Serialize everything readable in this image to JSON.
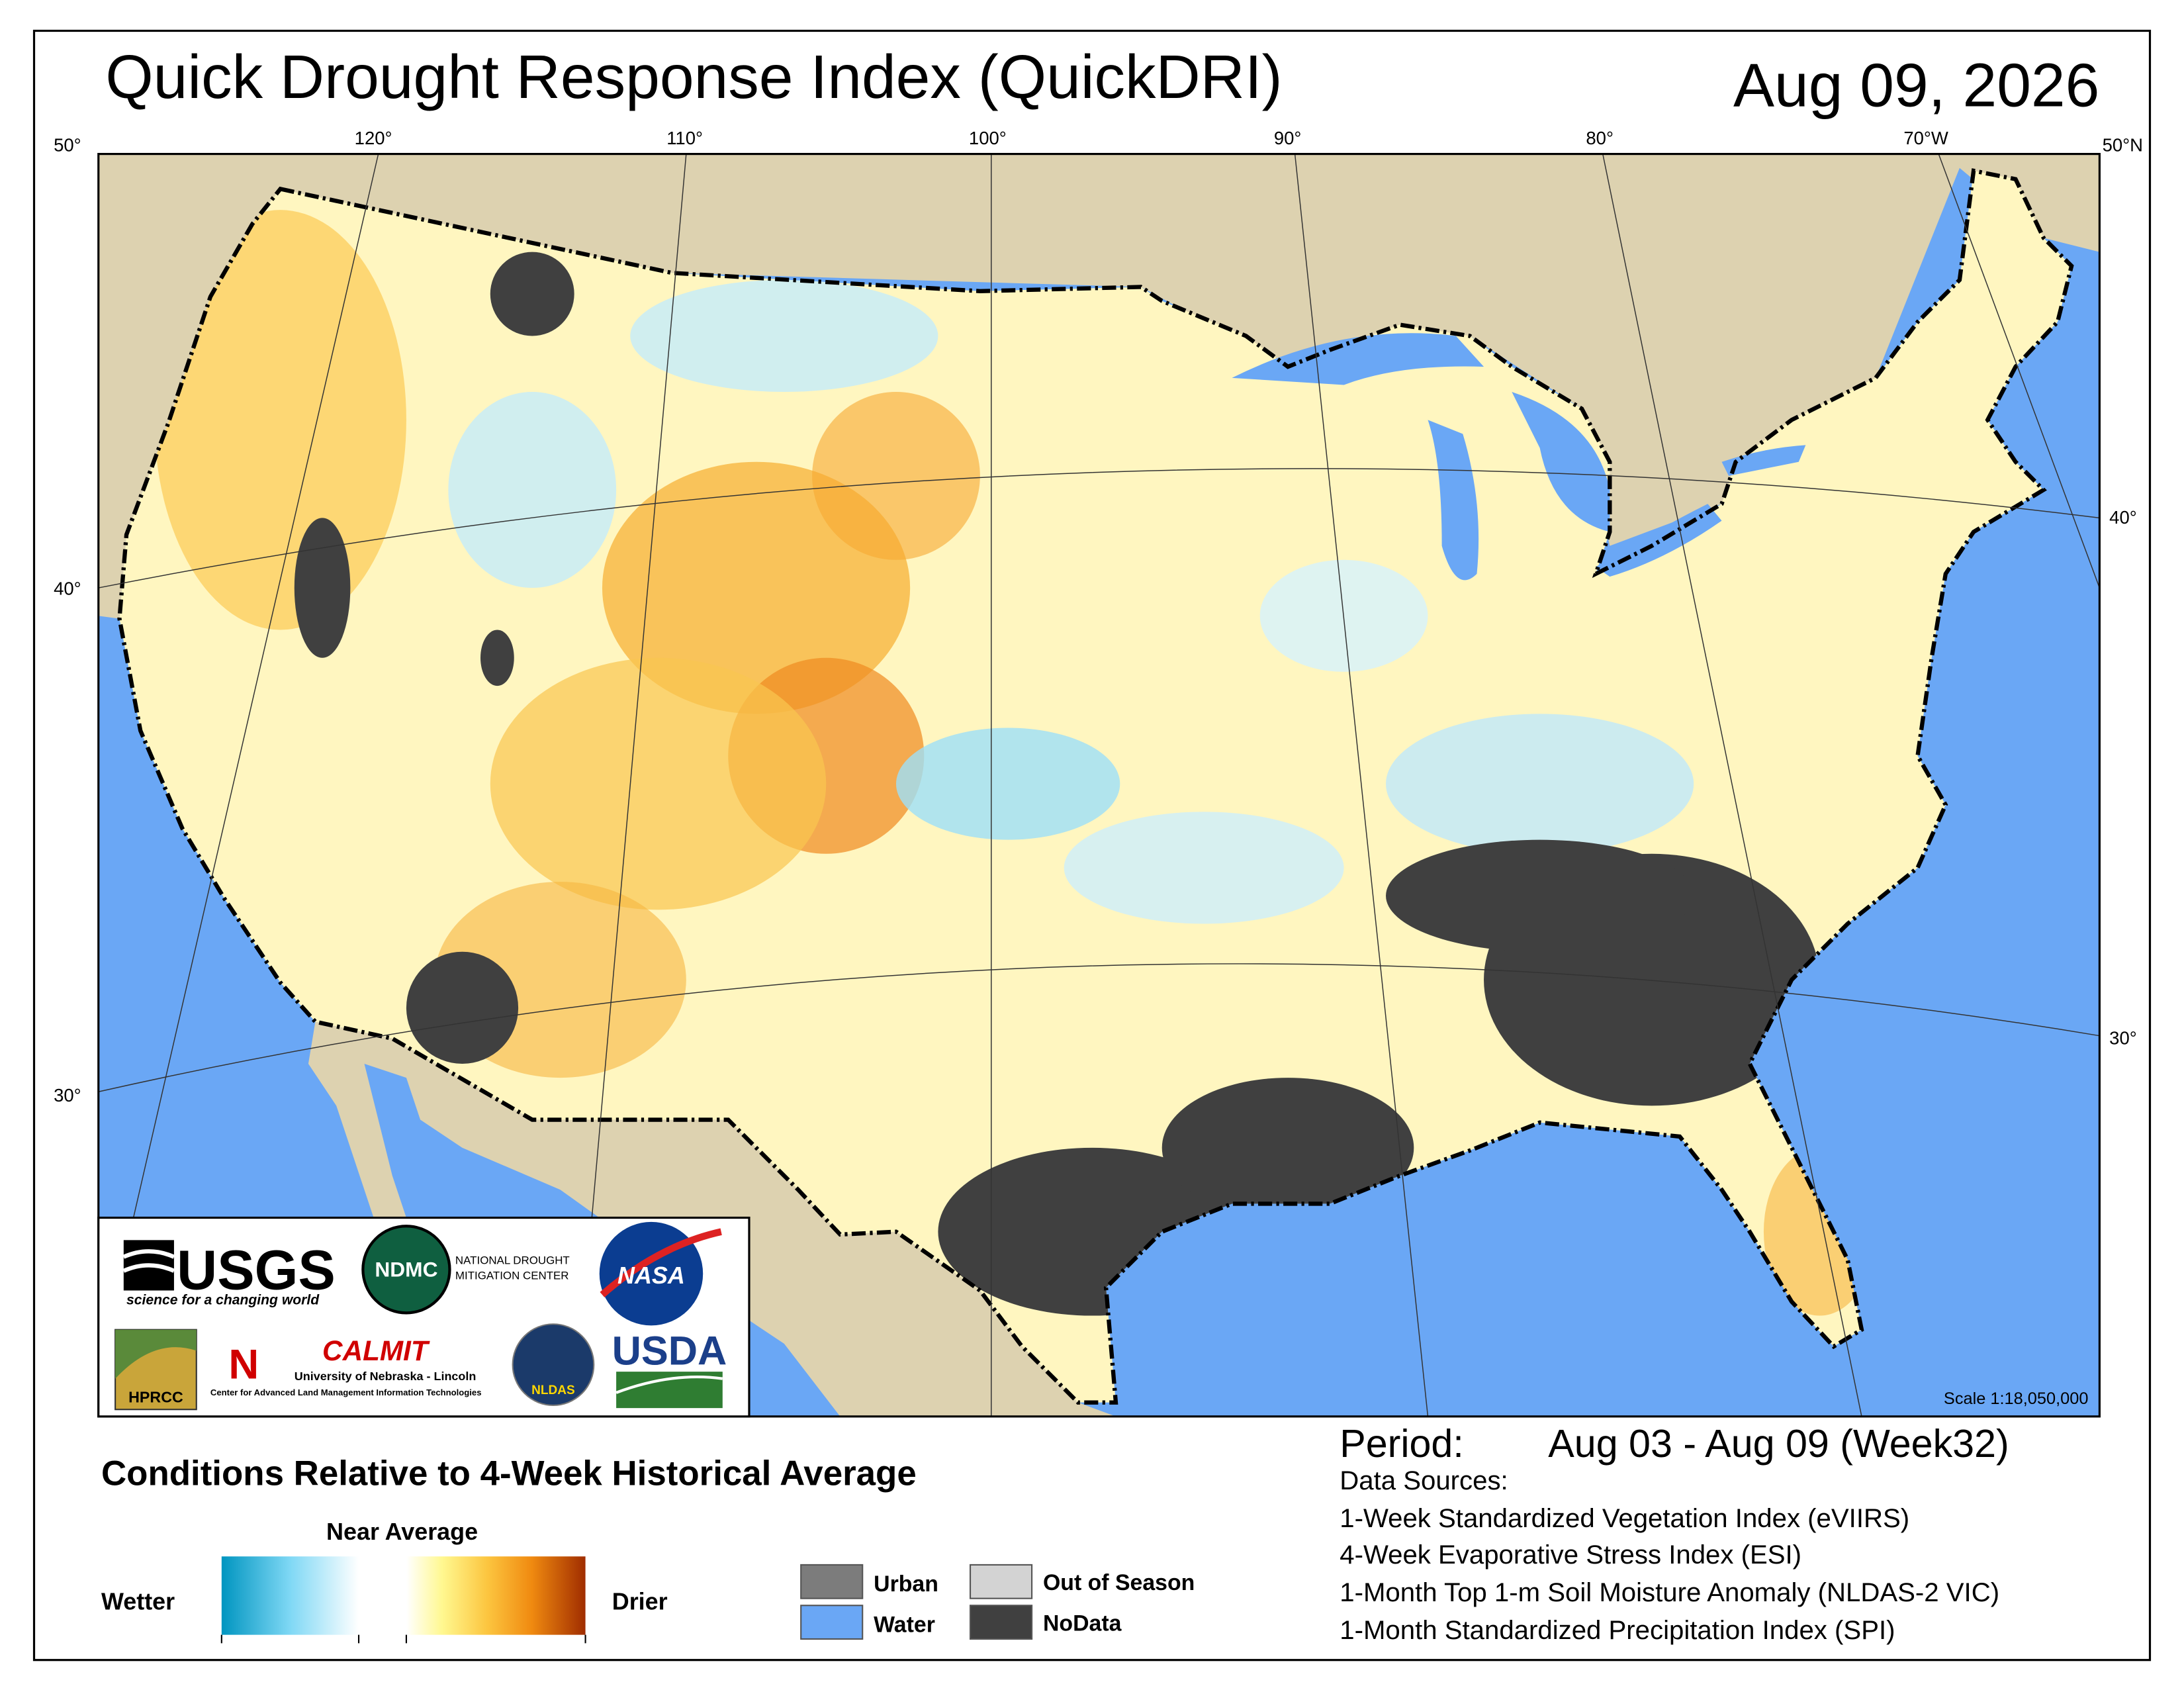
{
  "header": {
    "title": "Quick Drought Response Index (QuickDRI)",
    "date": "Aug 09, 2026"
  },
  "map": {
    "graticule_labels": [
      "50°",
      "120°",
      "110°",
      "100°",
      "90°",
      "80°",
      "70°W",
      "50°N",
      "40°",
      "40°",
      "30°",
      "30°"
    ],
    "scale": "Scale 1:18,050,000"
  },
  "logos": {
    "usgs": "USGS",
    "usgs_tagline": "science for a changing world",
    "ndmc": "NDMC",
    "ndmc_name": [
      "NATIONAL DROUGHT",
      "MITIGATION CENTER"
    ],
    "nasa": "NASA",
    "hprcc": "HPRCC",
    "calmit": "CALMIT",
    "calmit_university": "University of Nebraska - Lincoln",
    "calmit_center": "Center for Advanced Land Management Information Technologies",
    "nldas": "NLDAS",
    "usda": "USDA"
  },
  "legend": {
    "heading": "Conditions Relative to 4-Week Historical Average",
    "near_average": "Near Average",
    "wetter": "Wetter",
    "drier": "Drier",
    "classes": [
      "Urban",
      "Water",
      "Out of Season",
      "NoData"
    ]
  },
  "info": {
    "period_label": "Period:",
    "period": "Aug 03 - Aug 09 (Week32)",
    "sources_label": "Data Sources:",
    "sources": [
      "1-Week Standardized Vegetation Index (eVIIRS)",
      "4-Week Evaporative Stress Index (ESI)",
      "1-Month Top 1-m Soil Moisture Anomaly (NLDAS-2 VIC)",
      "1-Month Standardized Precipitation Index (SPI)"
    ]
  }
}
